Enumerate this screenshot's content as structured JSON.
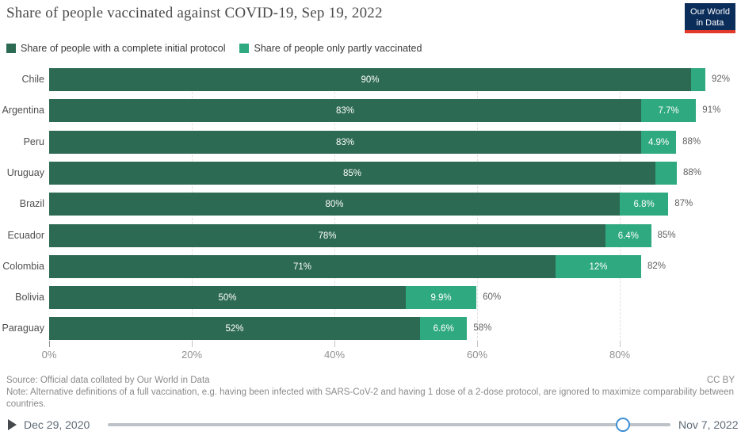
{
  "header": {
    "title": "Share of people vaccinated against COVID-19, Sep 19, 2022",
    "logo_line1": "Our World",
    "logo_line2": "in Data",
    "logo_bg": "#0b2d5a",
    "logo_accent": "#e2392c"
  },
  "legend": {
    "items": [
      {
        "label": "Share of people with a complete initial protocol",
        "color": "#2d6a53"
      },
      {
        "label": "Share of people only partly vaccinated",
        "color": "#2fa980"
      }
    ]
  },
  "chart_data": {
    "type": "bar",
    "orientation": "horizontal",
    "stacked": true,
    "title": "Share of people vaccinated against COVID-19, Sep 19, 2022",
    "categories": [
      "Chile",
      "Argentina",
      "Peru",
      "Uruguay",
      "Brazil",
      "Ecuador",
      "Colombia",
      "Bolivia",
      "Paraguay"
    ],
    "series": [
      {
        "name": "Share of people with a complete initial protocol",
        "color": "#2d6a53",
        "values": [
          90,
          83,
          83,
          85,
          80,
          78,
          71,
          50,
          52
        ],
        "labels": [
          "90%",
          "83%",
          "83%",
          "85%",
          "80%",
          "78%",
          "71%",
          "50%",
          "52%"
        ]
      },
      {
        "name": "Share of people only partly vaccinated",
        "color": "#2fa980",
        "values": [
          2,
          7.7,
          4.9,
          3,
          6.8,
          6.4,
          12,
          9.9,
          6.6
        ],
        "labels": [
          "",
          "7.7%",
          "4.9%",
          "",
          "6.8%",
          "6.4%",
          "12%",
          "9.9%",
          "6.6%"
        ]
      }
    ],
    "totals": [
      "92%",
      "91%",
      "88%",
      "88%",
      "87%",
      "85%",
      "82%",
      "60%",
      "58%"
    ],
    "x_ticks": [
      {
        "value": 0,
        "label": "0%"
      },
      {
        "value": 20,
        "label": "20%"
      },
      {
        "value": 40,
        "label": "40%"
      },
      {
        "value": 60,
        "label": "60%"
      },
      {
        "value": 80,
        "label": "80%"
      }
    ],
    "xlim": [
      0,
      97
    ],
    "grid": true,
    "legend_position": "top"
  },
  "footer": {
    "source": "Source: Official data collated by Our World in Data",
    "license": "CC BY",
    "note": "Note: Alternative definitions of a full vaccination, e.g. having been infected with SARS-CoV-2 and having 1 dose of a 2-dose protocol, are ignored to maximize comparability between countries."
  },
  "timeline": {
    "start_date": "Dec 29, 2020",
    "end_date": "Nov 7, 2022",
    "handle_fraction": 0.915,
    "handle_color": "#3b8fd6"
  }
}
